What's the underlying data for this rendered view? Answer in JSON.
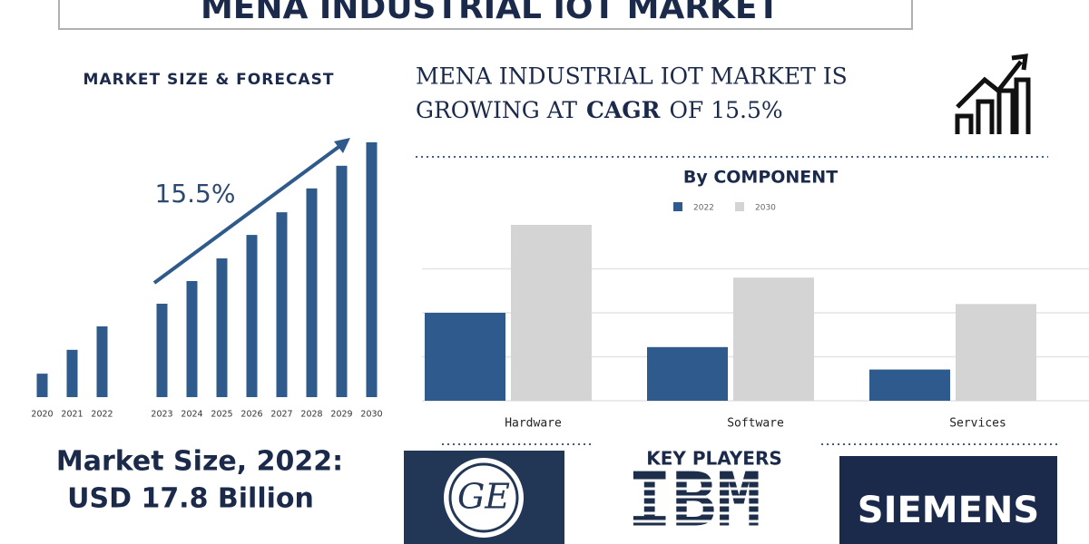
{
  "title": "MENA INDUSTRIAL IOT MARKET",
  "forecast_heading": "MARKET SIZE & FORECAST",
  "headline": {
    "line1": "MENA INDUSTRIAL IOT MARKET IS",
    "line2_start": "GROWING AT",
    "line2_bold": "CAGR",
    "line2_end": "OF 15.5%"
  },
  "market_size": {
    "label": "Market Size, 2022:",
    "value": "USD 17.8 Billion"
  },
  "key_players": {
    "heading": "KEY PLAYERS",
    "logos": [
      "GE",
      "IBM",
      "SIEMENS"
    ]
  },
  "chart_data": [
    {
      "type": "bar",
      "annotation": "15.5%",
      "categories": [
        "2020",
        "2021",
        "2022",
        "2023",
        "2024",
        "2025",
        "2026",
        "2027",
        "2028",
        "2029",
        "2030"
      ],
      "values": [
        5.9,
        11.9,
        17.8,
        23.5,
        29.2,
        34.9,
        40.8,
        46.5,
        52.5,
        58.2,
        64.1
      ],
      "color": "#2f5b8c",
      "ylim": [
        0,
        65
      ]
    },
    {
      "type": "bar",
      "title": "By COMPONENT",
      "categories": [
        "Hardware",
        "Software",
        "Services"
      ],
      "series": [
        {
          "name": "2022",
          "color": "#2e5a8e",
          "values": [
            2.0,
            1.22,
            0.71
          ]
        },
        {
          "name": "2030",
          "color": "#d4d4d4",
          "values": [
            4.0,
            2.8,
            2.2
          ]
        }
      ],
      "ylim": [
        0,
        4
      ],
      "yticks": [
        0,
        1,
        2,
        3
      ],
      "grid": true
    }
  ]
}
